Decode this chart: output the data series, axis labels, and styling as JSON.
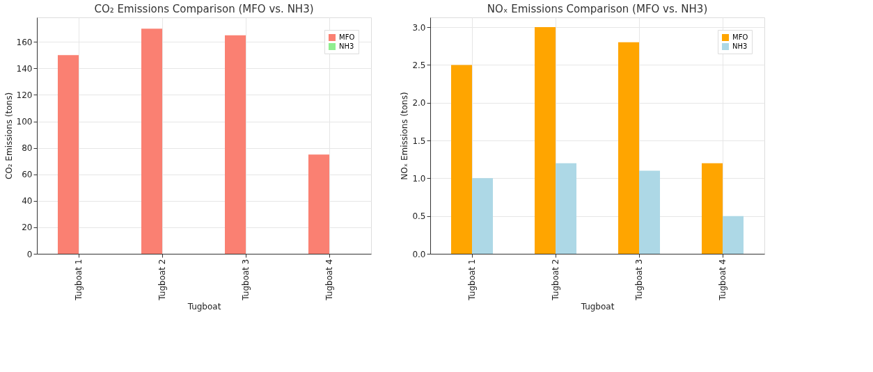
{
  "chart_data": [
    {
      "type": "bar",
      "title": "CO₂ Emissions Comparison (MFO vs. NH3)",
      "xlabel": "Tugboat",
      "ylabel": "CO₂ Emissions (tons)",
      "categories": [
        "Tugboat 1",
        "Tugboat 2",
        "Tugboat 3",
        "Tugboat 4"
      ],
      "series": [
        {
          "name": "MFO",
          "color": "#fa8072",
          "values": [
            150,
            170,
            165,
            75
          ]
        },
        {
          "name": "NH3",
          "color": "#90ee90",
          "values": [
            0,
            0,
            0,
            0
          ]
        }
      ],
      "ylim": [
        0,
        178.5
      ],
      "yticks": [
        0,
        20,
        40,
        60,
        80,
        100,
        120,
        140,
        160
      ],
      "grid": true,
      "legend": "top right"
    },
    {
      "type": "bar",
      "title": "NOₓ Emissions Comparison (MFO vs. NH3)",
      "xlabel": "Tugboat",
      "ylabel": "NOₓ Emissions (tons)",
      "categories": [
        "Tugboat 1",
        "Tugboat 2",
        "Tugboat 3",
        "Tugboat 4"
      ],
      "series": [
        {
          "name": "MFO",
          "color": "#ffa500",
          "values": [
            2.5,
            3.0,
            2.8,
            1.2
          ]
        },
        {
          "name": "NH3",
          "color": "#add8e6",
          "values": [
            1.0,
            1.2,
            1.1,
            0.5
          ]
        }
      ],
      "ylim": [
        0,
        3.13
      ],
      "yticks": [
        {
          "value": 0,
          "label": "0.0"
        },
        0.5,
        {
          "value": 1,
          "label": "1.0"
        },
        1.5,
        {
          "value": 2,
          "label": "2.0"
        },
        2.5,
        {
          "value": 3,
          "label": "3.0"
        }
      ],
      "grid": true,
      "legend": "top right"
    }
  ]
}
